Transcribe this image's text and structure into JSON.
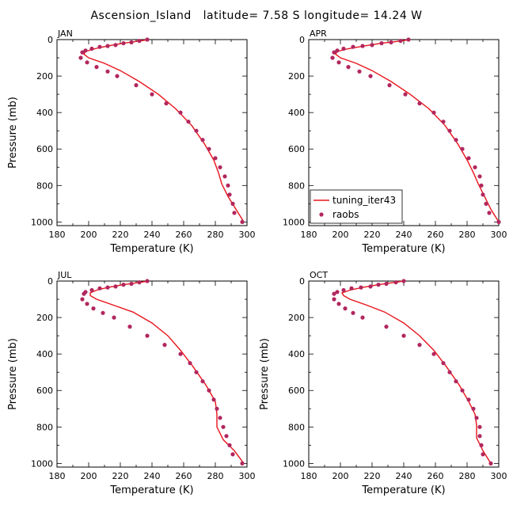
{
  "chart_data": {
    "type": "line",
    "title": "Ascension_Island   latitude= 7.58 S longitude= 14.24 W",
    "xlabel": "Temperature (K)",
    "ylabel": "Pressure (mb)",
    "xlim": [
      180,
      300
    ],
    "ylim": [
      0,
      1020
    ],
    "y_inverted": true,
    "xticks": [
      180,
      200,
      220,
      240,
      260,
      280,
      300
    ],
    "yticks": [
      0,
      200,
      400,
      600,
      800,
      1000
    ],
    "legend": {
      "location": "in APR panel, lower-left",
      "entries": [
        "tuning_iter43",
        "raobs"
      ]
    },
    "panels": [
      {
        "month": "JAN",
        "ylabel": "Pressure (mb)",
        "series": [
          {
            "name": "tuning_iter43",
            "kind": "line",
            "x": [
              238,
              230,
              222,
              212,
              204,
              198,
              197,
              200,
              210,
              220,
              232,
              244,
              255,
              265,
              273,
              279,
              282,
              284,
              288,
              293,
              298
            ],
            "y": [
              0,
              10,
              20,
              35,
              50,
              65,
              80,
              100,
              130,
              170,
              230,
              300,
              380,
              470,
              570,
              660,
              730,
              790,
              860,
              930,
              1000
            ]
          },
          {
            "name": "raobs",
            "kind": "scatter",
            "x": [
              237,
              232,
              227,
              222,
              217,
              212,
              207,
              202,
              198,
              196,
              195,
              199,
              205,
              212,
              218,
              230,
              240,
              249,
              258,
              263,
              268,
              272,
              276,
              280,
              283,
              286,
              288,
              289,
              291,
              292,
              297
            ],
            "y": [
              0,
              7,
              15,
              20,
              30,
              35,
              40,
              50,
              60,
              70,
              100,
              125,
              150,
              175,
              200,
              250,
              300,
              350,
              400,
              450,
              500,
              550,
              600,
              650,
              700,
              750,
              800,
              850,
              900,
              950,
              1000
            ]
          }
        ]
      },
      {
        "month": "APR",
        "ylabel": "",
        "series": [
          {
            "name": "tuning_iter43",
            "kind": "line",
            "x": [
              244,
              236,
              226,
              215,
              205,
              198,
              197,
              200,
              210,
              220,
              232,
              244,
              256,
              266,
              274,
              280,
              284,
              287,
              291,
              295,
              300
            ],
            "y": [
              0,
              10,
              20,
              35,
              50,
              65,
              80,
              100,
              130,
              170,
              230,
              300,
              380,
              470,
              570,
              660,
              730,
              790,
              860,
              930,
              1000
            ]
          },
          {
            "name": "raobs",
            "kind": "scatter",
            "x": [
              243,
              238,
              232,
              226,
              220,
              214,
              208,
              202,
              198,
              196,
              195,
              199,
              205,
              212,
              219,
              231,
              241,
              250,
              259,
              265,
              269,
              273,
              277,
              281,
              285,
              288,
              289,
              290,
              292,
              294,
              300
            ],
            "y": [
              0,
              7,
              15,
              20,
              30,
              35,
              40,
              50,
              60,
              70,
              100,
              125,
              150,
              175,
              200,
              250,
              300,
              350,
              400,
              450,
              500,
              550,
              600,
              650,
              700,
              750,
              800,
              850,
              900,
              950,
              1000
            ]
          }
        ]
      },
      {
        "month": "JUL",
        "ylabel": "Pressure (mb)",
        "series": [
          {
            "name": "tuning_iter43",
            "kind": "line",
            "x": [
              238,
              230,
              222,
              212,
              205,
              201,
              201,
              205,
              215,
              228,
              240,
              250,
              258,
              266,
              274,
              280,
              281,
              281,
              285,
              292,
              298
            ],
            "y": [
              0,
              10,
              20,
              35,
              50,
              65,
              80,
              100,
              130,
              170,
              230,
              300,
              380,
              470,
              570,
              660,
              730,
              800,
              870,
              930,
              1000
            ]
          },
          {
            "name": "raobs",
            "kind": "scatter",
            "x": [
              237,
              232,
              227,
              222,
              217,
              212,
              207,
              202,
              198,
              197,
              196,
              199,
              203,
              209,
              216,
              226,
              237,
              248,
              258,
              264,
              268,
              272,
              276,
              279,
              281,
              283,
              285,
              287,
              289,
              291,
              297
            ],
            "y": [
              0,
              7,
              15,
              20,
              30,
              35,
              40,
              50,
              60,
              70,
              100,
              125,
              150,
              175,
              200,
              250,
              300,
              350,
              400,
              450,
              500,
              550,
              600,
              650,
              700,
              750,
              800,
              850,
              900,
              950,
              1000
            ]
          }
        ]
      },
      {
        "month": "OCT",
        "ylabel": "Pressure (mb)",
        "series": [
          {
            "name": "tuning_iter43",
            "kind": "line",
            "x": [
              240,
              232,
              224,
              214,
              206,
              201,
              202,
              206,
              216,
              228,
              240,
              250,
              259,
              267,
              275,
              281,
              285,
              286,
              286,
              290,
              295
            ],
            "y": [
              0,
              10,
              20,
              35,
              50,
              65,
              80,
              100,
              130,
              170,
              230,
              300,
              380,
              470,
              570,
              660,
              730,
              790,
              860,
              930,
              1000
            ]
          },
          {
            "name": "raobs",
            "kind": "scatter",
            "x": [
              240,
              235,
              229,
              224,
              219,
              213,
              207,
              202,
              198,
              196,
              196,
              199,
              203,
              208,
              214,
              229,
              240,
              250,
              259,
              265,
              269,
              273,
              277,
              281,
              284,
              286,
              288,
              288,
              289,
              290,
              295
            ],
            "y": [
              0,
              7,
              15,
              20,
              30,
              35,
              40,
              50,
              60,
              70,
              100,
              125,
              150,
              175,
              200,
              250,
              300,
              350,
              400,
              450,
              500,
              550,
              600,
              650,
              700,
              750,
              800,
              850,
              900,
              950,
              1000
            ]
          }
        ]
      }
    ]
  },
  "colors": {
    "model": "#e8141b",
    "obs": "#b2275e",
    "frame": "#000000"
  }
}
